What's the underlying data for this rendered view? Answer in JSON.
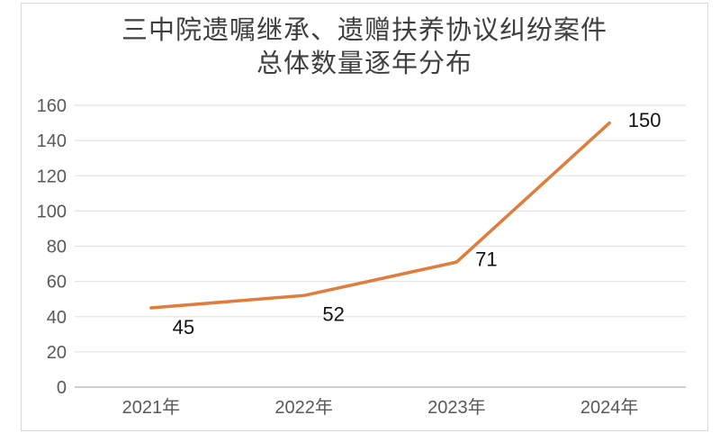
{
  "chart": {
    "title_line1": "三中院遗嘱继承、遗赠扶养协议纠纷案件",
    "title_line2": "总体数量逐年分布"
  },
  "chart_data": {
    "type": "line",
    "title": "三中院遗嘱继承、遗赠扶养协议纠纷案件 总体数量逐年分布",
    "categories": [
      "2021年",
      "2022年",
      "2023年",
      "2024年"
    ],
    "values": [
      45,
      52,
      71,
      150
    ],
    "data_labels": [
      "45",
      "52",
      "71",
      "150"
    ],
    "yticks": [
      0,
      20,
      40,
      60,
      80,
      100,
      120,
      140,
      160
    ],
    "ylim": [
      0,
      160
    ],
    "xlabel": "",
    "ylabel": "",
    "grid": true,
    "legend": false
  },
  "colors": {
    "line": "#E07C3C",
    "grid": "#E4E4E4",
    "axis": "#BDBDBD",
    "tick_label": "#595959",
    "data_label": "#121212",
    "title": "#3F3F3F",
    "frame_border": "#D9D9D9",
    "background": "#FFFFFF"
  }
}
